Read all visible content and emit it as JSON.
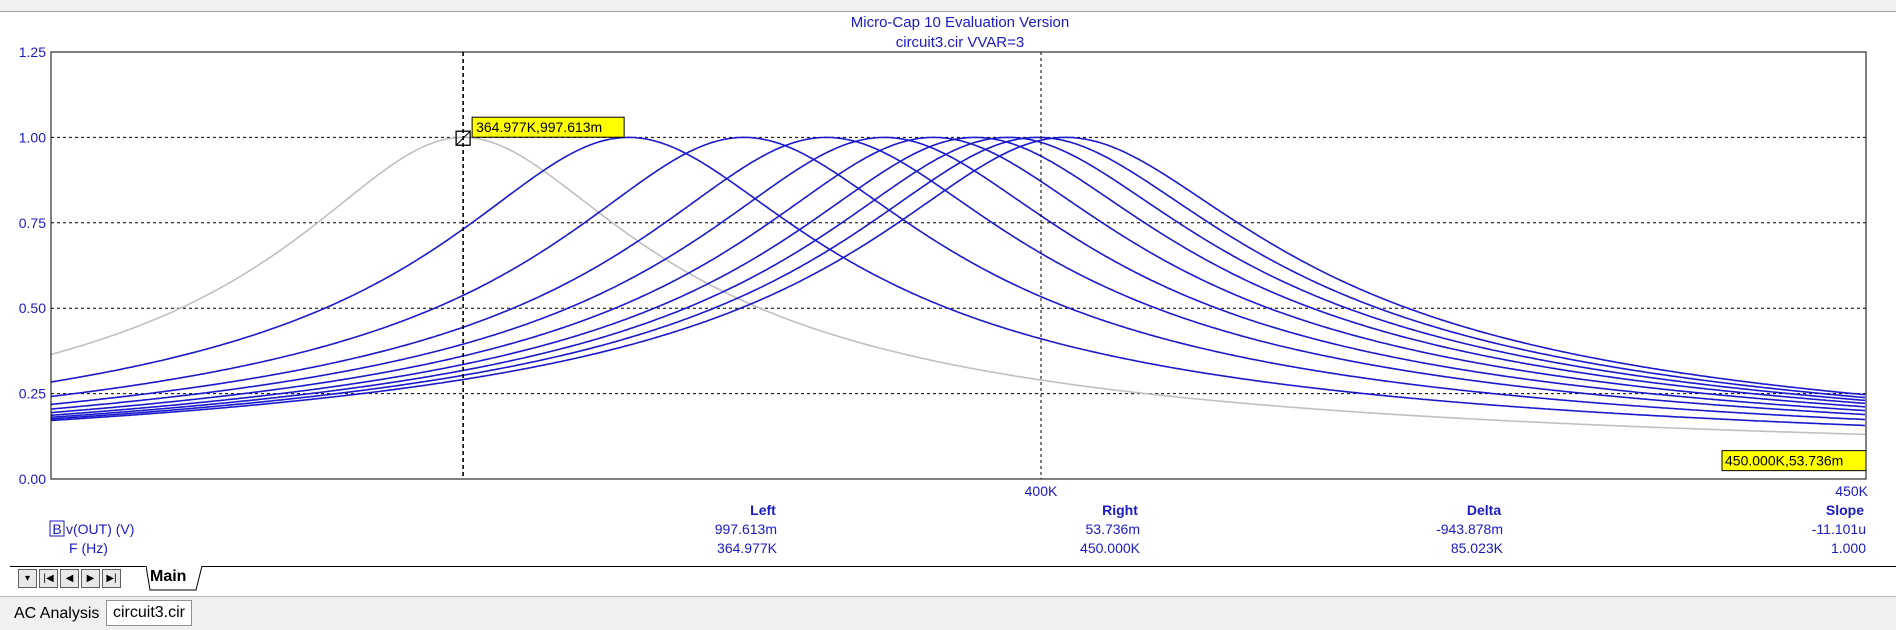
{
  "chart_data": {
    "type": "line",
    "title": "Micro-Cap 10 Evaluation Version",
    "subtitle": "circuit3.cir VVAR=3",
    "xlim": [
      340000,
      450000
    ],
    "ylim": [
      0,
      1.25
    ],
    "y_ticks": [
      "0.00",
      "0.25",
      "0.50",
      "0.75",
      "1.00",
      "1.25"
    ],
    "x_ticks": [
      {
        "value": 400000,
        "label": "400K"
      },
      {
        "value": 450000,
        "label": "450K"
      }
    ],
    "grid": "dashed",
    "series": [
      {
        "color": "#c0c0c0",
        "peak": 364977,
        "q": 18,
        "floor": 0
      },
      {
        "color": "#1a1acc",
        "peak": 375000,
        "q": 17.2,
        "floor": 0
      },
      {
        "color": "#1a1acc",
        "peak": 382000,
        "q": 17.2,
        "floor": 0
      },
      {
        "color": "#1a1acc",
        "peak": 387000,
        "q": 17.2,
        "floor": 0
      },
      {
        "color": "#1a1acc",
        "peak": 390500,
        "q": 17.2,
        "floor": 0
      },
      {
        "color": "#1a1acc",
        "peak": 393500,
        "q": 17.2,
        "floor": 0
      },
      {
        "color": "#1a1acc",
        "peak": 396000,
        "q": 17.2,
        "floor": 0
      },
      {
        "color": "#1a1acc",
        "peak": 398000,
        "q": 17.2,
        "floor": 0
      },
      {
        "color": "#1a1acc",
        "peak": 399800,
        "q": 17.2,
        "floor": 0
      },
      {
        "color": "#1a1acc",
        "peak": 401500,
        "q": 17.2,
        "floor": 0
      }
    ],
    "cursor_left": {
      "x": 364977,
      "y": 0.997613,
      "label": "364.977K,997.613m"
    },
    "cursor_right": {
      "x": 450000,
      "y": 0.053736,
      "label": "450.000K,53.736m"
    },
    "cursor_line_x": [
      364977,
      400000
    ]
  },
  "measurements": {
    "headers": {
      "left": "Left",
      "right": "Right",
      "delta": "Delta",
      "slope": "Slope"
    },
    "rows": [
      {
        "marker": "B",
        "name": "v(OUT) (V)",
        "left": "997.613m",
        "right": "53.736m",
        "delta": "-943.878m",
        "slope": "-11.101u"
      },
      {
        "marker": "",
        "name": "F (Hz)",
        "left": "364.977K",
        "right": "450.000K",
        "delta": "85.023K",
        "slope": "1.000"
      }
    ]
  },
  "tabs": [
    {
      "label": "Main",
      "active": true
    }
  ],
  "nav_icons": [
    "dropdown-icon",
    "first-icon",
    "prev-icon",
    "next-icon",
    "last-icon"
  ],
  "status": {
    "analysis": "AC Analysis",
    "file": "circuit3.cir"
  }
}
